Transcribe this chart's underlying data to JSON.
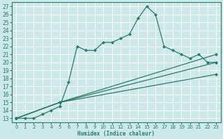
{
  "xlabel": "Humidex (Indice chaleur)",
  "xlim": [
    -0.5,
    23.5
  ],
  "ylim": [
    12.5,
    27.5
  ],
  "xticks": [
    0,
    1,
    2,
    3,
    4,
    5,
    6,
    7,
    8,
    9,
    10,
    11,
    12,
    13,
    14,
    15,
    16,
    17,
    18,
    19,
    20,
    21,
    22,
    23
  ],
  "yticks": [
    13,
    14,
    15,
    16,
    17,
    18,
    19,
    20,
    21,
    22,
    23,
    24,
    25,
    26,
    27
  ],
  "bg_color": "#cce9e9",
  "grid_color": "#ffffff",
  "line_color": "#2a7a6a",
  "lines": [
    {
      "x": [
        0,
        1,
        2,
        3,
        4,
        5,
        6,
        7,
        8,
        9,
        10,
        11,
        12,
        13,
        14,
        15,
        16,
        17,
        18,
        19,
        20,
        21,
        22,
        23
      ],
      "y": [
        13,
        13,
        13,
        13.5,
        14,
        14.5,
        17.5,
        22,
        21.5,
        21.5,
        22.5,
        22.5,
        23,
        23.5,
        25.5,
        27,
        26,
        22,
        21.5,
        21,
        20.5,
        21,
        20,
        20
      ]
    },
    {
      "x": [
        0,
        5,
        23
      ],
      "y": [
        13,
        15,
        21
      ]
    },
    {
      "x": [
        0,
        5,
        23
      ],
      "y": [
        13,
        15,
        20
      ]
    },
    {
      "x": [
        0,
        5,
        23
      ],
      "y": [
        13,
        15,
        18.5
      ]
    }
  ]
}
